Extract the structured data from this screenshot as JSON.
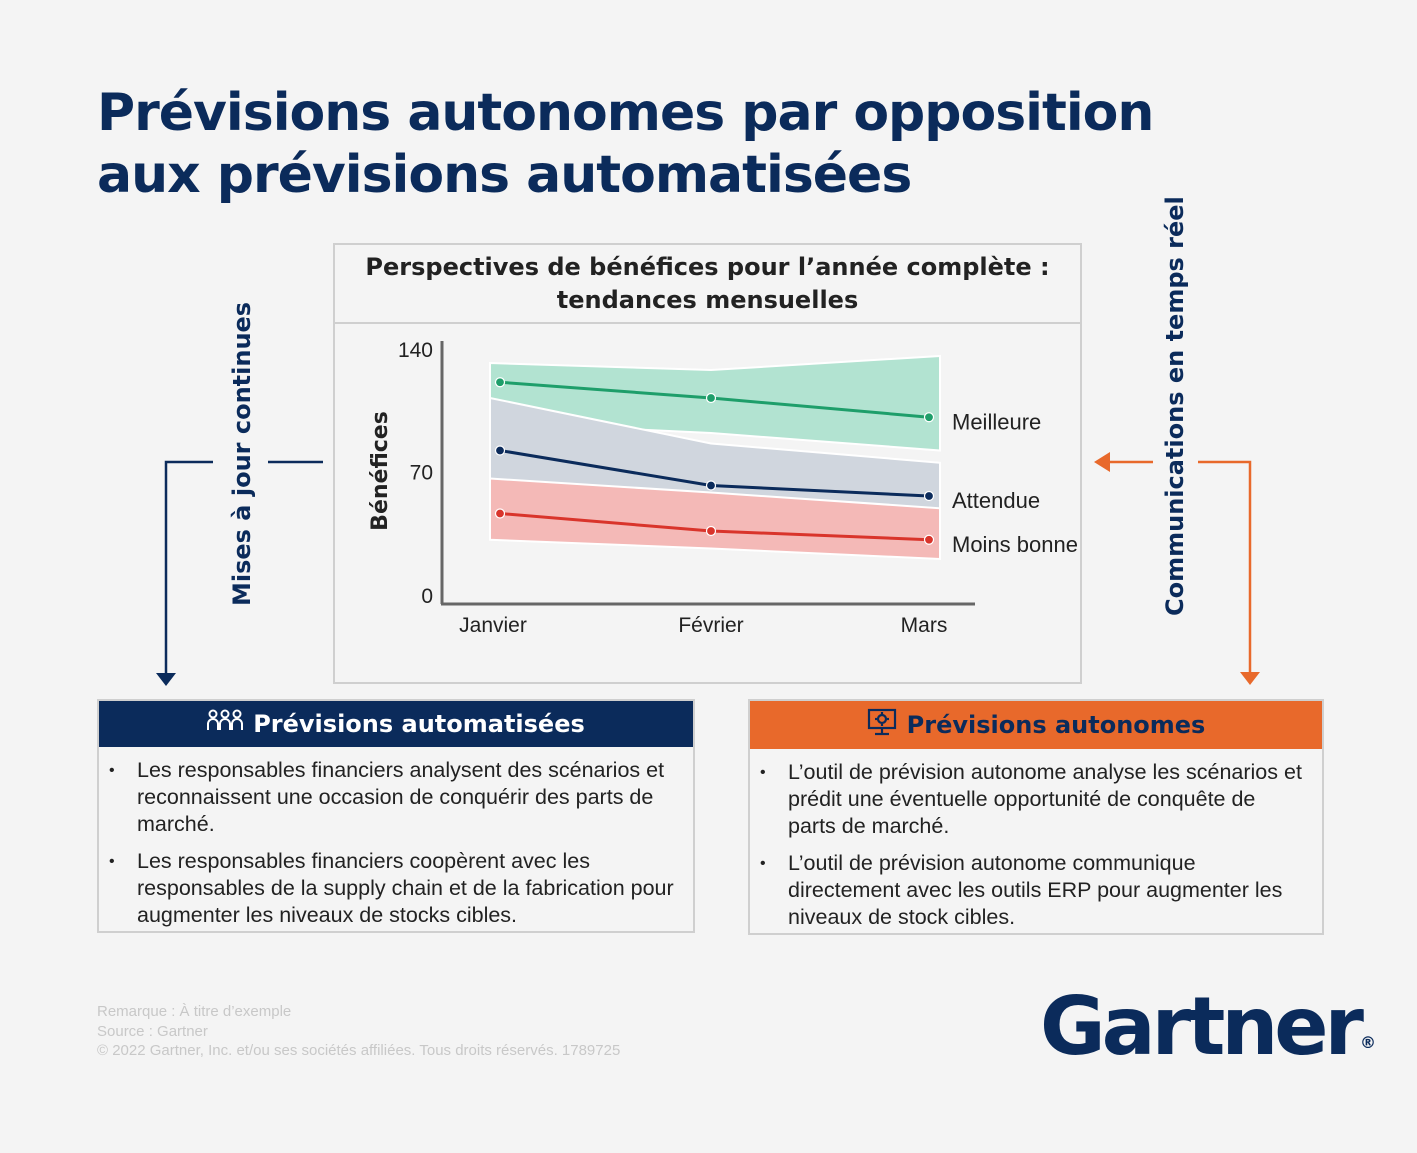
{
  "title": "Prévisions autonomes par opposition aux prévisions automatisées",
  "left_label": "Mises à jour continues",
  "right_label": "Communications en temps réel",
  "chart_data": {
    "type": "line",
    "title": "Perspectives de bénéfices pour l’année complète : tendances mensuelles",
    "ylabel": "Bénéfices",
    "xlabel": "",
    "categories": [
      "Janvier",
      "Février",
      "Mars"
    ],
    "yticks": [
      "140",
      "70",
      "0"
    ],
    "ylim": [
      0,
      140
    ],
    "grid": false,
    "series": [
      {
        "name": "Meilleure",
        "values": [
          121,
          112,
          101
        ],
        "band": [
          [
            132,
            98
          ],
          [
            128,
            92
          ],
          [
            136,
            82
          ]
        ],
        "color": "#1e9e6a",
        "band_color": "#b2e3d1"
      },
      {
        "name": "Attendue",
        "values": [
          82,
          62,
          56
        ],
        "band": [
          [
            112,
            54
          ],
          [
            86,
            50
          ],
          [
            75,
            45
          ]
        ],
        "color": "#0b2b5b",
        "band_color": "#d0d6de"
      },
      {
        "name": "Moins bonne",
        "values": [
          46,
          36,
          31
        ],
        "band": [
          [
            66,
            31
          ],
          [
            58,
            26
          ],
          [
            49,
            20
          ]
        ],
        "color": "#d9342b",
        "band_color": "#f4b9b7"
      }
    ]
  },
  "panel_left": {
    "heading": "Prévisions automatisées",
    "icon": "people-icon",
    "bullets": [
      "Les responsables financiers analysent des scénarios et reconnaissent une occasion de conquérir des parts de marché.",
      "Les responsables financiers coopèrent avec les responsables de la supply chain et de la fabrication pour augmenter les niveaux de stocks cibles."
    ]
  },
  "panel_right": {
    "heading": "Prévisions autonomes",
    "icon": "computer-gear-icon",
    "bullets": [
      "L’outil de prévision autonome analyse les scénarios et prédit une éventuelle opportunité de conquête de parts de marché.",
      "L’outil de prévision autonome communique directement avec les outils ERP pour augmenter les niveaux de stock cibles."
    ]
  },
  "footer": {
    "note": "Remarque : À titre d’exemple",
    "source": "Source : Gartner",
    "copyright": "© 2022 Gartner, Inc. et/ou ses sociétés affiliées. Tous droits réservés. 1789725"
  },
  "logo": {
    "text": "Gartner",
    "mark": "®"
  },
  "colors": {
    "navy": "#0b2b5b",
    "orange": "#e8692b"
  }
}
